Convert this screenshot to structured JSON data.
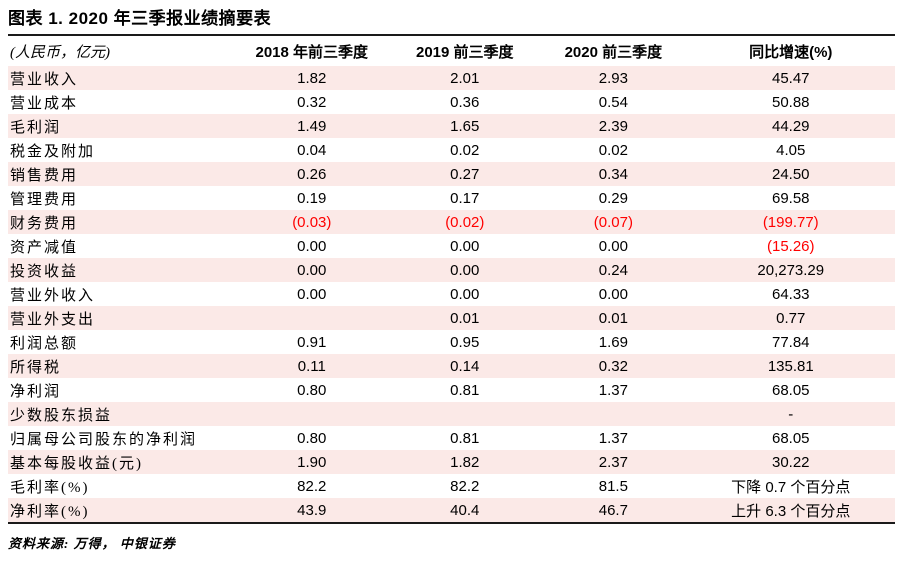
{
  "title": "图表 1. 2020 年三季报业绩摘要表",
  "source": "资料来源: 万得， 中银证券",
  "colors": {
    "stripe": "#fbe9e7",
    "negative": "#ff0000",
    "rule": "#1a1a1a"
  },
  "table": {
    "columns": [
      "(人民币，亿元)",
      "2018 年前三季度",
      "2019 前三季度",
      "2020 前三季度",
      "同比增速(%)"
    ],
    "rows": [
      {
        "label": "营业收入",
        "values": [
          "1.82",
          "2.01",
          "2.93",
          "45.47"
        ],
        "red": []
      },
      {
        "label": "营业成本",
        "values": [
          "0.32",
          "0.36",
          "0.54",
          "50.88"
        ],
        "red": []
      },
      {
        "label": "毛利润",
        "values": [
          "1.49",
          "1.65",
          "2.39",
          "44.29"
        ],
        "red": []
      },
      {
        "label": "税金及附加",
        "values": [
          "0.04",
          "0.02",
          "0.02",
          "4.05"
        ],
        "red": []
      },
      {
        "label": "销售费用",
        "values": [
          "0.26",
          "0.27",
          "0.34",
          "24.50"
        ],
        "red": []
      },
      {
        "label": "管理费用",
        "values": [
          "0.19",
          "0.17",
          "0.29",
          "69.58"
        ],
        "red": []
      },
      {
        "label": "财务费用",
        "values": [
          "(0.03)",
          "(0.02)",
          "(0.07)",
          "(199.77)"
        ],
        "red": [
          0,
          1,
          2,
          3
        ]
      },
      {
        "label": "资产减值",
        "values": [
          "0.00",
          "0.00",
          "0.00",
          "(15.26)"
        ],
        "red": [
          3
        ]
      },
      {
        "label": "投资收益",
        "values": [
          "0.00",
          "0.00",
          "0.24",
          "20,273.29"
        ],
        "red": []
      },
      {
        "label": "营业外收入",
        "values": [
          "0.00",
          "0.00",
          "0.00",
          "64.33"
        ],
        "red": []
      },
      {
        "label": "营业外支出",
        "values": [
          "",
          "0.01",
          "0.01",
          "0.77"
        ],
        "red": []
      },
      {
        "label": "利润总额",
        "values": [
          "0.91",
          "0.95",
          "1.69",
          "77.84"
        ],
        "red": []
      },
      {
        "label": "所得税",
        "values": [
          "0.11",
          "0.14",
          "0.32",
          "135.81"
        ],
        "red": []
      },
      {
        "label": "净利润",
        "values": [
          "0.80",
          "0.81",
          "1.37",
          "68.05"
        ],
        "red": []
      },
      {
        "label": "少数股东损益",
        "values": [
          "",
          "",
          "",
          "-"
        ],
        "red": []
      },
      {
        "label": "归属母公司股东的净利润",
        "values": [
          "0.80",
          "0.81",
          "1.37",
          "68.05"
        ],
        "red": []
      },
      {
        "label": "基本每股收益(元)",
        "values": [
          "1.90",
          "1.82",
          "2.37",
          "30.22"
        ],
        "red": []
      },
      {
        "label": "毛利率(%)",
        "values": [
          "82.2",
          "82.2",
          "81.5",
          "下降 0.7 个百分点"
        ],
        "red": []
      },
      {
        "label": "净利率(%)",
        "values": [
          "43.9",
          "40.4",
          "46.7",
          "上升 6.3 个百分点"
        ],
        "red": []
      }
    ]
  }
}
